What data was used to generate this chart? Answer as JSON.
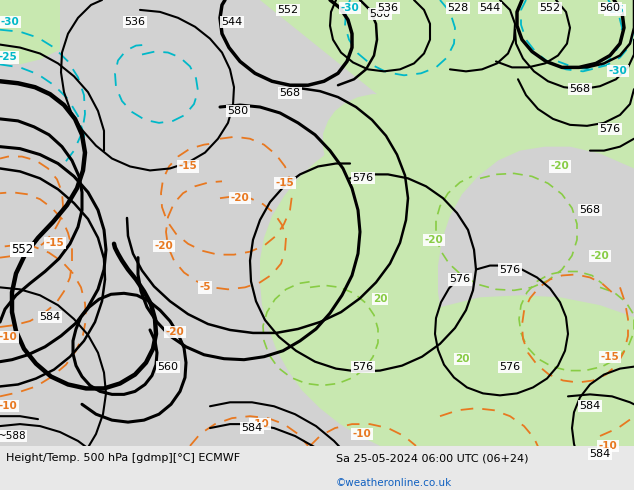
{
  "title_left": "Height/Temp. 500 hPa [gdmp][°C] ECMWF",
  "title_right": "Sa 25-05-2024 06:00 UTC (06+24)",
  "watermark": "©weatheronline.co.uk",
  "bg_gray": "#d2d2d2",
  "bg_green": "#c8e8b0",
  "bg_white": "#f0f0f0",
  "black": "#000000",
  "orange": "#e87820",
  "cyan": "#00b8c8",
  "green_line": "#88cc44",
  "bottom_bg": "#e8e8e8"
}
